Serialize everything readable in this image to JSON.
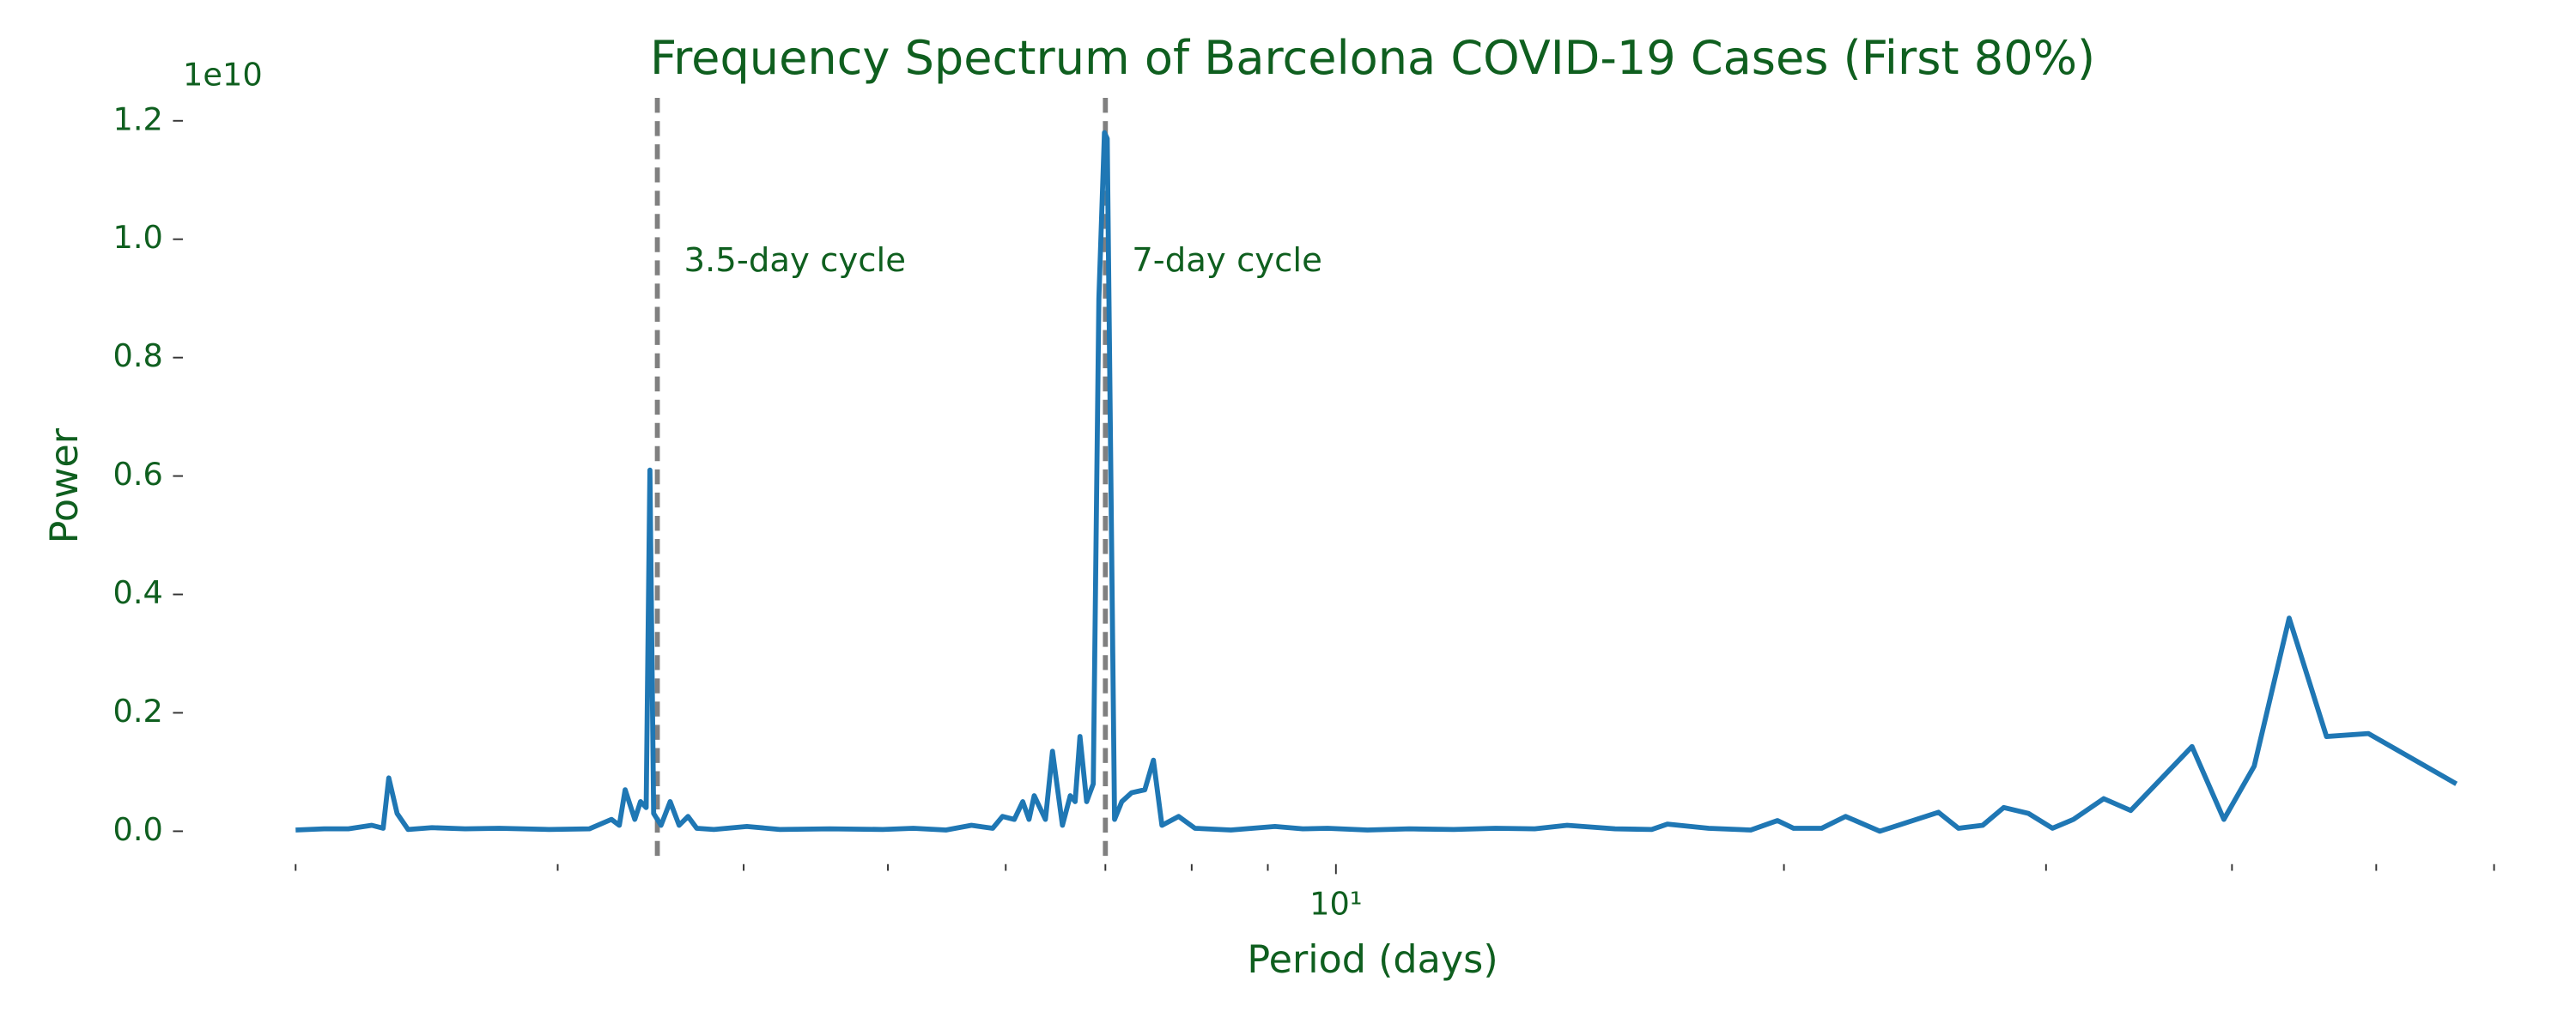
{
  "chart_data": {
    "type": "line",
    "title": "Frequency Spectrum of Barcelona COVID-19 Cases (First 80%)",
    "xlabel": "Period (days)",
    "ylabel": "Power",
    "y_offset_label": "1e10",
    "xscale": "log",
    "color": "#1f77b4",
    "text_color": "#0f5f1f",
    "xlim": [
      1.68,
      66
    ],
    "ylim": [
      -0.05,
      1.25
    ],
    "xticks": [
      {
        "value": 10,
        "label": "10¹"
      }
    ],
    "xminorticks": [
      2,
      3,
      4,
      5,
      6,
      7,
      8,
      9,
      20,
      30,
      40,
      50,
      60
    ],
    "yticks": [
      {
        "value": 0,
        "label": "0.0"
      },
      {
        "value": 0.2,
        "label": "0.2"
      },
      {
        "value": 0.4,
        "label": "0.4"
      },
      {
        "value": 0.6,
        "label": "0.6"
      },
      {
        "value": 0.8,
        "label": "0.8"
      },
      {
        "value": 1.0,
        "label": "1.0"
      },
      {
        "value": 1.2,
        "label": "1.2"
      }
    ],
    "vlines": [
      {
        "value": 3.5,
        "label": "3.5-day cycle"
      },
      {
        "value": 7,
        "label": "7-day cycle"
      }
    ],
    "vline_color": "#808080",
    "x": [
      2.0,
      2.09,
      2.17,
      2.25,
      2.29,
      2.31,
      2.34,
      2.38,
      2.47,
      2.6,
      2.74,
      2.96,
      3.15,
      3.26,
      3.3,
      3.33,
      3.38,
      3.41,
      3.44,
      3.46,
      3.48,
      3.52,
      3.57,
      3.62,
      3.67,
      3.72,
      3.82,
      4.02,
      4.23,
      4.57,
      4.96,
      5.2,
      5.47,
      5.69,
      5.88,
      5.97,
      6.08,
      6.16,
      6.22,
      6.27,
      6.38,
      6.45,
      6.55,
      6.63,
      6.68,
      6.73,
      6.8,
      6.87,
      6.93,
      6.99,
      7.02,
      7.1,
      7.18,
      7.29,
      7.44,
      7.54,
      7.64,
      7.84,
      8.04,
      8.5,
      9.1,
      9.5,
      9.87,
      10.5,
      11.2,
      12.0,
      12.8,
      13.6,
      14.3,
      15.4,
      16.3,
      16.7,
      17.8,
      19.0,
      19.8,
      20.3,
      21.2,
      22.0,
      23.2,
      25.4,
      26.2,
      27.2,
      28.1,
      29.2,
      30.3,
      31.3,
      32.8,
      34.2,
      37.6,
      39.5,
      41.4,
      43.7,
      46.3,
      49.4,
      56.6
    ],
    "values": [
      0.002,
      0.004,
      0.004,
      0.01,
      0.005,
      0.09,
      0.03,
      0.003,
      0.006,
      0.004,
      0.005,
      0.003,
      0.004,
      0.02,
      0.01,
      0.07,
      0.02,
      0.05,
      0.04,
      0.61,
      0.03,
      0.01,
      0.05,
      0.01,
      0.025,
      0.005,
      0.003,
      0.008,
      0.003,
      0.004,
      0.003,
      0.005,
      0.002,
      0.01,
      0.005,
      0.025,
      0.02,
      0.05,
      0.02,
      0.06,
      0.02,
      0.135,
      0.01,
      0.06,
      0.05,
      0.16,
      0.05,
      0.08,
      0.9,
      1.18,
      1.17,
      0.02,
      0.05,
      0.065,
      0.07,
      0.12,
      0.01,
      0.025,
      0.005,
      0.002,
      0.008,
      0.004,
      0.005,
      0.002,
      0.004,
      0.003,
      0.005,
      0.004,
      0.01,
      0.004,
      0.003,
      0.012,
      0.005,
      0.002,
      0.018,
      0.005,
      0.005,
      0.025,
      0.0,
      0.032,
      0.005,
      0.01,
      0.04,
      0.03,
      0.005,
      0.02,
      0.055,
      0.035,
      0.143,
      0.02,
      0.11,
      0.36,
      0.16,
      0.165,
      0.08
    ]
  }
}
